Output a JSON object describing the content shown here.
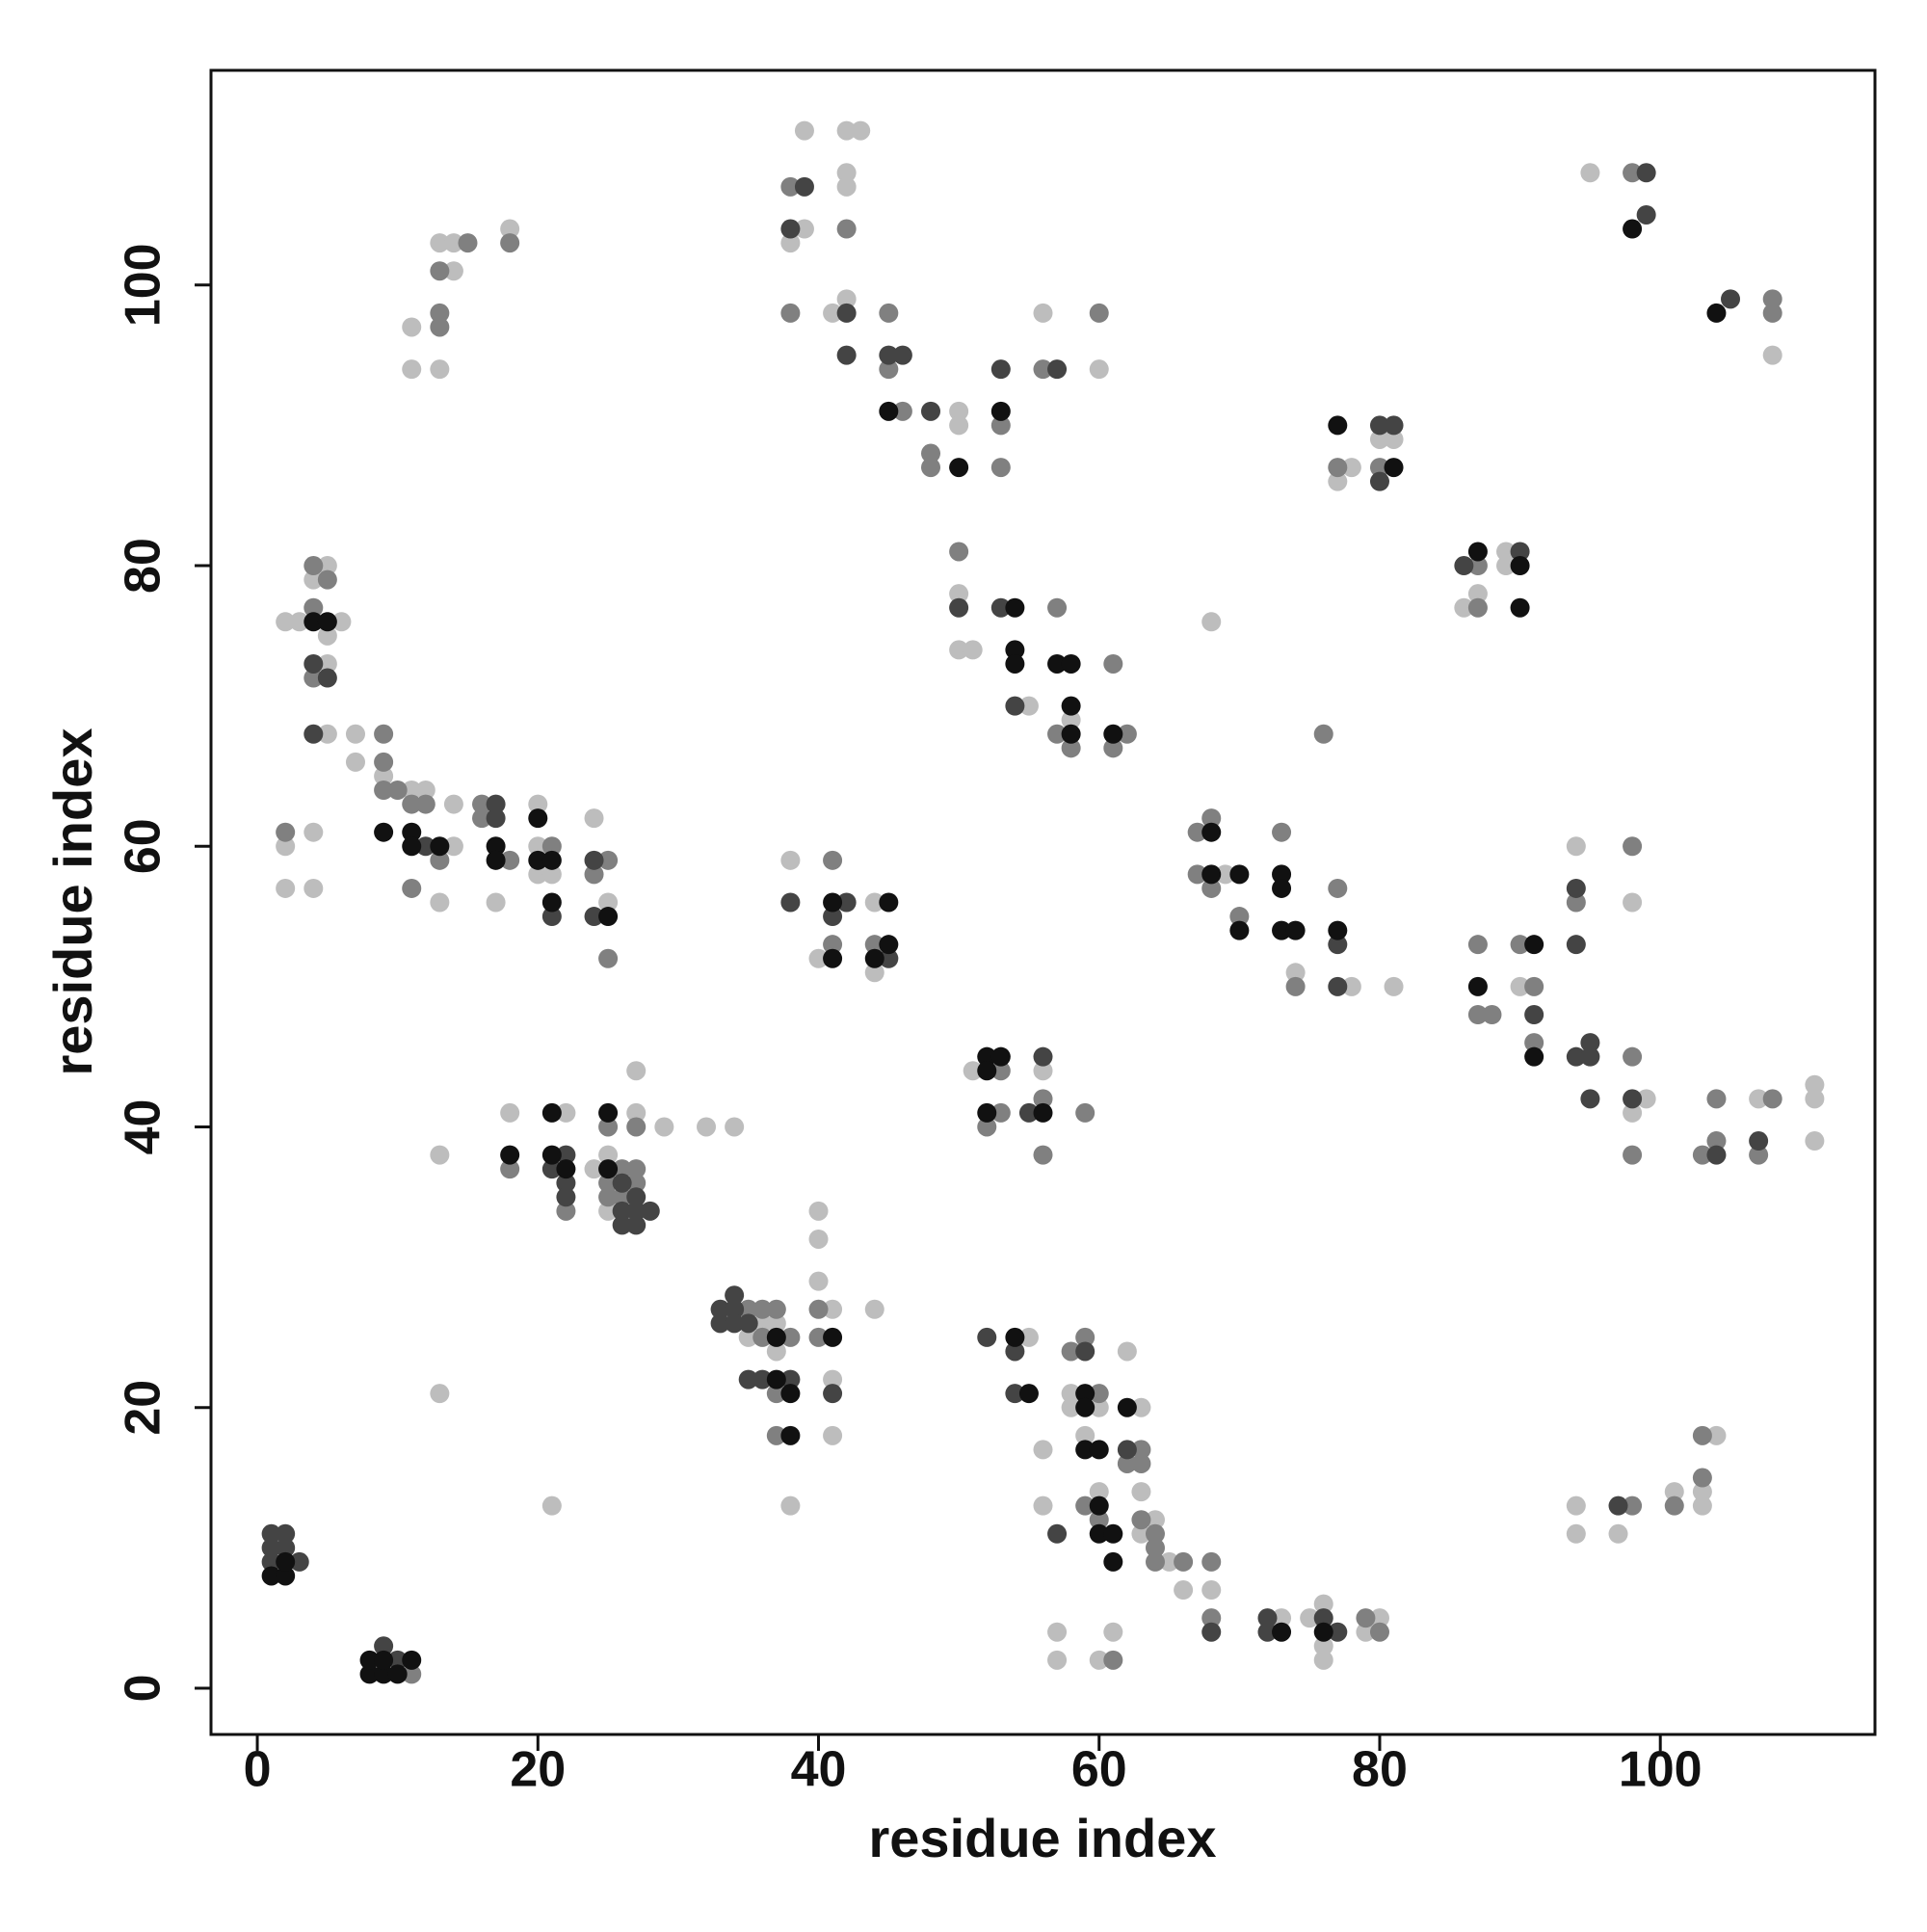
{
  "chart_data": {
    "type": "scatter",
    "x_label": "residue index",
    "y_label": "residue index",
    "xlim": [
      -3.3,
      115.3
    ],
    "ylim": [
      -3.3,
      115.3
    ],
    "xticks": [
      0,
      20,
      40,
      60,
      80,
      100
    ],
    "yticks": [
      0,
      20,
      40,
      60,
      80,
      100
    ],
    "series": [
      {
        "color": "#bdbdbd",
        "x": [
          2,
          2,
          4,
          4,
          2,
          3,
          6,
          4,
          5,
          5,
          5,
          5,
          7,
          7,
          9,
          11,
          12,
          14,
          14,
          20,
          20,
          20,
          21,
          24,
          25,
          13,
          17,
          11,
          11,
          13,
          14,
          13,
          14,
          18,
          13,
          13,
          18,
          22,
          24,
          25,
          25,
          27,
          27,
          29,
          32,
          34,
          21,
          35,
          36,
          37,
          37,
          38,
          40,
          40,
          40,
          41,
          41,
          41,
          44,
          38,
          40,
          44,
          44,
          39,
          38,
          39,
          42,
          43,
          42,
          42,
          42,
          41,
          50,
          50,
          56,
          60,
          50,
          50,
          51,
          55,
          58,
          51,
          56,
          55,
          56,
          58,
          58,
          60,
          59,
          63,
          56,
          60,
          62,
          63,
          63,
          64,
          65,
          66,
          68,
          57,
          57,
          60,
          61,
          73,
          75,
          76,
          76,
          76,
          79,
          80,
          69,
          74,
          78,
          81,
          68,
          78,
          77,
          80,
          81,
          86,
          87,
          89,
          89,
          90,
          94,
          98,
          99,
          98,
          107,
          111,
          111,
          111,
          95,
          108,
          94,
          94,
          97,
          101,
          104,
          103,
          103
        ],
        "y": [
          57,
          60,
          57,
          61,
          76,
          76,
          76,
          79,
          80,
          75,
          73,
          68,
          68,
          66,
          65,
          64,
          64,
          60,
          63,
          63,
          60,
          58,
          58,
          62,
          56,
          56,
          56,
          97,
          94,
          94,
          101,
          103,
          103,
          104,
          38,
          21,
          41,
          41,
          37,
          38,
          34,
          41,
          44,
          40,
          40,
          40,
          13,
          25,
          26,
          26,
          24,
          13,
          34,
          32,
          29,
          27,
          22,
          18,
          27,
          59,
          52,
          56,
          51,
          104,
          103,
          111,
          111,
          111,
          108,
          107,
          99,
          98,
          91,
          90,
          98,
          94,
          78,
          74,
          74,
          70,
          69,
          44,
          44,
          25,
          17,
          21,
          20,
          20,
          18,
          20,
          13,
          14,
          24,
          14,
          11,
          12,
          9,
          7,
          7,
          4,
          2,
          2,
          4,
          5,
          5,
          6,
          3,
          2,
          4,
          5,
          58,
          51,
          50,
          50,
          76,
          87,
          86,
          89,
          89,
          77,
          78,
          81,
          80,
          50,
          60,
          56,
          42,
          41,
          42,
          43,
          42,
          39,
          108,
          95,
          13,
          11,
          11,
          14,
          18,
          14,
          13
        ]
      },
      {
        "color": "#808080",
        "x": [
          11,
          2,
          4,
          4,
          5,
          4,
          9,
          9,
          9,
          10,
          11,
          12,
          13,
          16,
          16,
          18,
          21,
          25,
          24,
          25,
          11,
          13,
          13,
          13,
          15,
          18,
          18,
          22,
          25,
          25,
          25,
          26,
          26,
          27,
          27,
          27,
          35,
          36,
          36,
          37,
          37,
          37,
          38,
          40,
          40,
          41,
          41,
          44,
          38,
          42,
          38,
          45,
          45,
          46,
          48,
          48,
          53,
          53,
          56,
          60,
          50,
          57,
          57,
          58,
          61,
          62,
          61,
          53,
          53,
          52,
          56,
          56,
          59,
          58,
          59,
          60,
          63,
          62,
          63,
          59,
          60,
          63,
          64,
          64,
          64,
          66,
          68,
          68,
          61,
          79,
          80,
          67,
          68,
          67,
          68,
          70,
          73,
          74,
          77,
          76,
          77,
          80,
          87,
          87,
          87,
          87,
          88,
          90,
          91,
          91,
          94,
          98,
          98,
          98,
          103,
          104,
          104,
          108,
          107,
          98,
          108,
          108,
          98,
          101,
          103,
          103
        ],
        "y": [
          1,
          61,
          77,
          80,
          79,
          72,
          68,
          66,
          64,
          64,
          63,
          63,
          59,
          63,
          62,
          59,
          60,
          59,
          58,
          52,
          57,
          97,
          98,
          101,
          103,
          103,
          37,
          34,
          40,
          36,
          35,
          37,
          35,
          37,
          36,
          40,
          27,
          27,
          25,
          27,
          21,
          18,
          25,
          27,
          25,
          59,
          53,
          53,
          107,
          104,
          98,
          98,
          94,
          91,
          88,
          87,
          90,
          87,
          94,
          98,
          81,
          77,
          68,
          67,
          73,
          68,
          67,
          44,
          41,
          40,
          42,
          38,
          41,
          24,
          25,
          21,
          17,
          16,
          16,
          13,
          12,
          12,
          11,
          10,
          9,
          9,
          9,
          5,
          2,
          5,
          4,
          61,
          62,
          58,
          57,
          55,
          61,
          50,
          57,
          68,
          87,
          87,
          80,
          77,
          53,
          48,
          48,
          53,
          50,
          46,
          56,
          60,
          45,
          38,
          38,
          39,
          42,
          42,
          38,
          108,
          99,
          98,
          13,
          13,
          18,
          15
        ]
      },
      {
        "color": "#444444",
        "x": [
          1,
          1,
          1,
          2,
          2,
          3,
          9,
          10,
          4,
          5,
          4,
          12,
          17,
          17,
          21,
          24,
          24,
          22,
          21,
          22,
          22,
          26,
          26,
          26,
          27,
          27,
          27,
          28,
          33,
          33,
          34,
          34,
          34,
          35,
          35,
          36,
          38,
          41,
          38,
          42,
          41,
          45,
          39,
          38,
          42,
          42,
          45,
          46,
          48,
          53,
          57,
          50,
          53,
          54,
          56,
          55,
          52,
          54,
          59,
          54,
          62,
          57,
          68,
          72,
          72,
          76,
          77,
          77,
          77,
          80,
          81,
          80,
          86,
          90,
          91,
          94,
          94,
          94,
          95,
          95,
          95,
          98,
          104,
          107,
          99,
          99,
          105,
          97
        ],
        "y": [
          9,
          10,
          11,
          10,
          11,
          9,
          3,
          2,
          73,
          72,
          68,
          60,
          63,
          62,
          55,
          59,
          55,
          38,
          37,
          36,
          35,
          36,
          34,
          33,
          35,
          34,
          33,
          34,
          27,
          26,
          28,
          27,
          26,
          26,
          22,
          22,
          22,
          21,
          56,
          56,
          55,
          52,
          107,
          104,
          98,
          95,
          95,
          95,
          91,
          94,
          94,
          77,
          77,
          70,
          45,
          41,
          25,
          24,
          24,
          21,
          17,
          11,
          4,
          5,
          4,
          5,
          4,
          53,
          50,
          90,
          90,
          86,
          80,
          81,
          48,
          57,
          53,
          45,
          46,
          45,
          42,
          42,
          38,
          39,
          108,
          105,
          99,
          13
        ]
      },
      {
        "color": "#111111",
        "x": [
          1,
          2,
          2,
          8,
          8,
          9,
          9,
          10,
          11,
          4,
          5,
          9,
          11,
          11,
          13,
          17,
          17,
          20,
          20,
          21,
          21,
          25,
          18,
          21,
          21,
          22,
          25,
          25,
          37,
          37,
          38,
          38,
          41,
          41,
          41,
          45,
          45,
          44,
          45,
          50,
          53,
          54,
          54,
          54,
          57,
          58,
          58,
          58,
          61,
          52,
          53,
          52,
          52,
          56,
          54,
          55,
          59,
          59,
          59,
          60,
          62,
          60,
          60,
          61,
          61,
          73,
          76,
          68,
          68,
          70,
          70,
          73,
          73,
          73,
          74,
          77,
          77,
          81,
          87,
          90,
          90,
          87,
          91,
          91,
          98,
          104
        ],
        "y": [
          8,
          8,
          9,
          1,
          2,
          1,
          2,
          1,
          2,
          76,
          76,
          61,
          61,
          60,
          60,
          60,
          59,
          62,
          59,
          59,
          56,
          55,
          38,
          41,
          38,
          37,
          41,
          37,
          25,
          22,
          21,
          18,
          25,
          56,
          52,
          56,
          53,
          52,
          91,
          87,
          91,
          77,
          74,
          73,
          73,
          73,
          70,
          68,
          68,
          45,
          45,
          44,
          41,
          41,
          25,
          21,
          21,
          20,
          17,
          17,
          20,
          13,
          11,
          11,
          9,
          4,
          4,
          61,
          58,
          58,
          54,
          58,
          57,
          54,
          54,
          54,
          90,
          87,
          81,
          80,
          77,
          50,
          53,
          45,
          104,
          98
        ]
      }
    ]
  }
}
